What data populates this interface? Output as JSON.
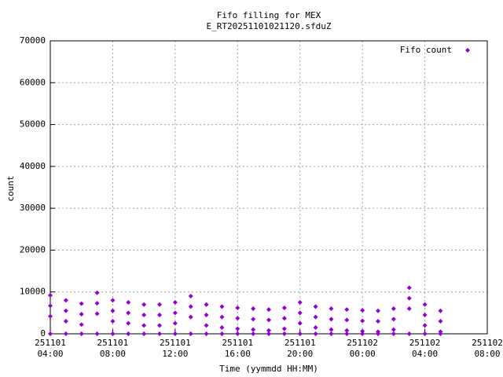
{
  "chart_data": {
    "type": "scatter",
    "title": "Fifo filling for MEX",
    "subtitle": "E_RT20251101021120.sfduZ",
    "x_label": "Time (yymmdd HH:MM)",
    "y_label": "count",
    "legend_position": "upper right",
    "grid": true,
    "xlim": [
      4,
      32
    ],
    "xticks": [
      {
        "value": 4,
        "label": "251101\n04:00"
      },
      {
        "value": 8,
        "label": "251101\n08:00"
      },
      {
        "value": 12,
        "label": "251101\n12:00"
      },
      {
        "value": 16,
        "label": "251101\n16:00"
      },
      {
        "value": 20,
        "label": "251101\n20:00"
      },
      {
        "value": 24,
        "label": "251102\n00:00"
      },
      {
        "value": 28,
        "label": "251102\n04:00"
      },
      {
        "value": 32,
        "label": "251102\n08:00"
      }
    ],
    "ylim": [
      0,
      70000
    ],
    "yticks": [
      0,
      10000,
      20000,
      30000,
      40000,
      50000,
      60000,
      70000
    ],
    "x": [
      4,
      4,
      4,
      4,
      5,
      5,
      5,
      5,
      6,
      6,
      6,
      6,
      7,
      7,
      7,
      7,
      8,
      8,
      8,
      8,
      9,
      9,
      9,
      9,
      10,
      10,
      10,
      10,
      11,
      11,
      11,
      11,
      12,
      12,
      12,
      12,
      13,
      13,
      13,
      13,
      14,
      14,
      14,
      14,
      15,
      15,
      15,
      15,
      16,
      16,
      16,
      16,
      17,
      17,
      17,
      17,
      18,
      18,
      18,
      18,
      19,
      19,
      19,
      19,
      20,
      20,
      20,
      20,
      21,
      21,
      21,
      21,
      22,
      22,
      22,
      22,
      23,
      23,
      23,
      23,
      24,
      24,
      24,
      24,
      25,
      25,
      25,
      25,
      26,
      26,
      26,
      26,
      27,
      27,
      27,
      27,
      28,
      28,
      28,
      28,
      29,
      29,
      29,
      29
    ],
    "series": [
      {
        "name": "Fifo count",
        "color": "#9400d3",
        "values": [
          9200,
          6700,
          4200,
          0,
          8000,
          5500,
          3000,
          0,
          7200,
          4700,
          2200,
          0,
          9800,
          7300,
          4800,
          0,
          8000,
          5500,
          3000,
          0,
          7500,
          5000,
          2500,
          0,
          7000,
          4500,
          2000,
          0,
          7000,
          4500,
          2000,
          0,
          7500,
          5000,
          2500,
          0,
          9000,
          6500,
          4000,
          0,
          7000,
          4500,
          2000,
          0,
          6500,
          4000,
          1500,
          0,
          6200,
          3700,
          1200,
          0,
          6000,
          3500,
          1000,
          0,
          5800,
          3300,
          800,
          0,
          6200,
          3700,
          1200,
          0,
          7500,
          5000,
          2500,
          0,
          6500,
          4000,
          1500,
          0,
          6000,
          3500,
          1000,
          0,
          5800,
          3300,
          800,
          0,
          5600,
          3100,
          600,
          0,
          5500,
          3000,
          500,
          0,
          6000,
          3500,
          1000,
          0,
          11000,
          8500,
          6000,
          0,
          7000,
          4500,
          2000,
          0,
          5500,
          3000,
          500,
          0
        ]
      }
    ]
  }
}
